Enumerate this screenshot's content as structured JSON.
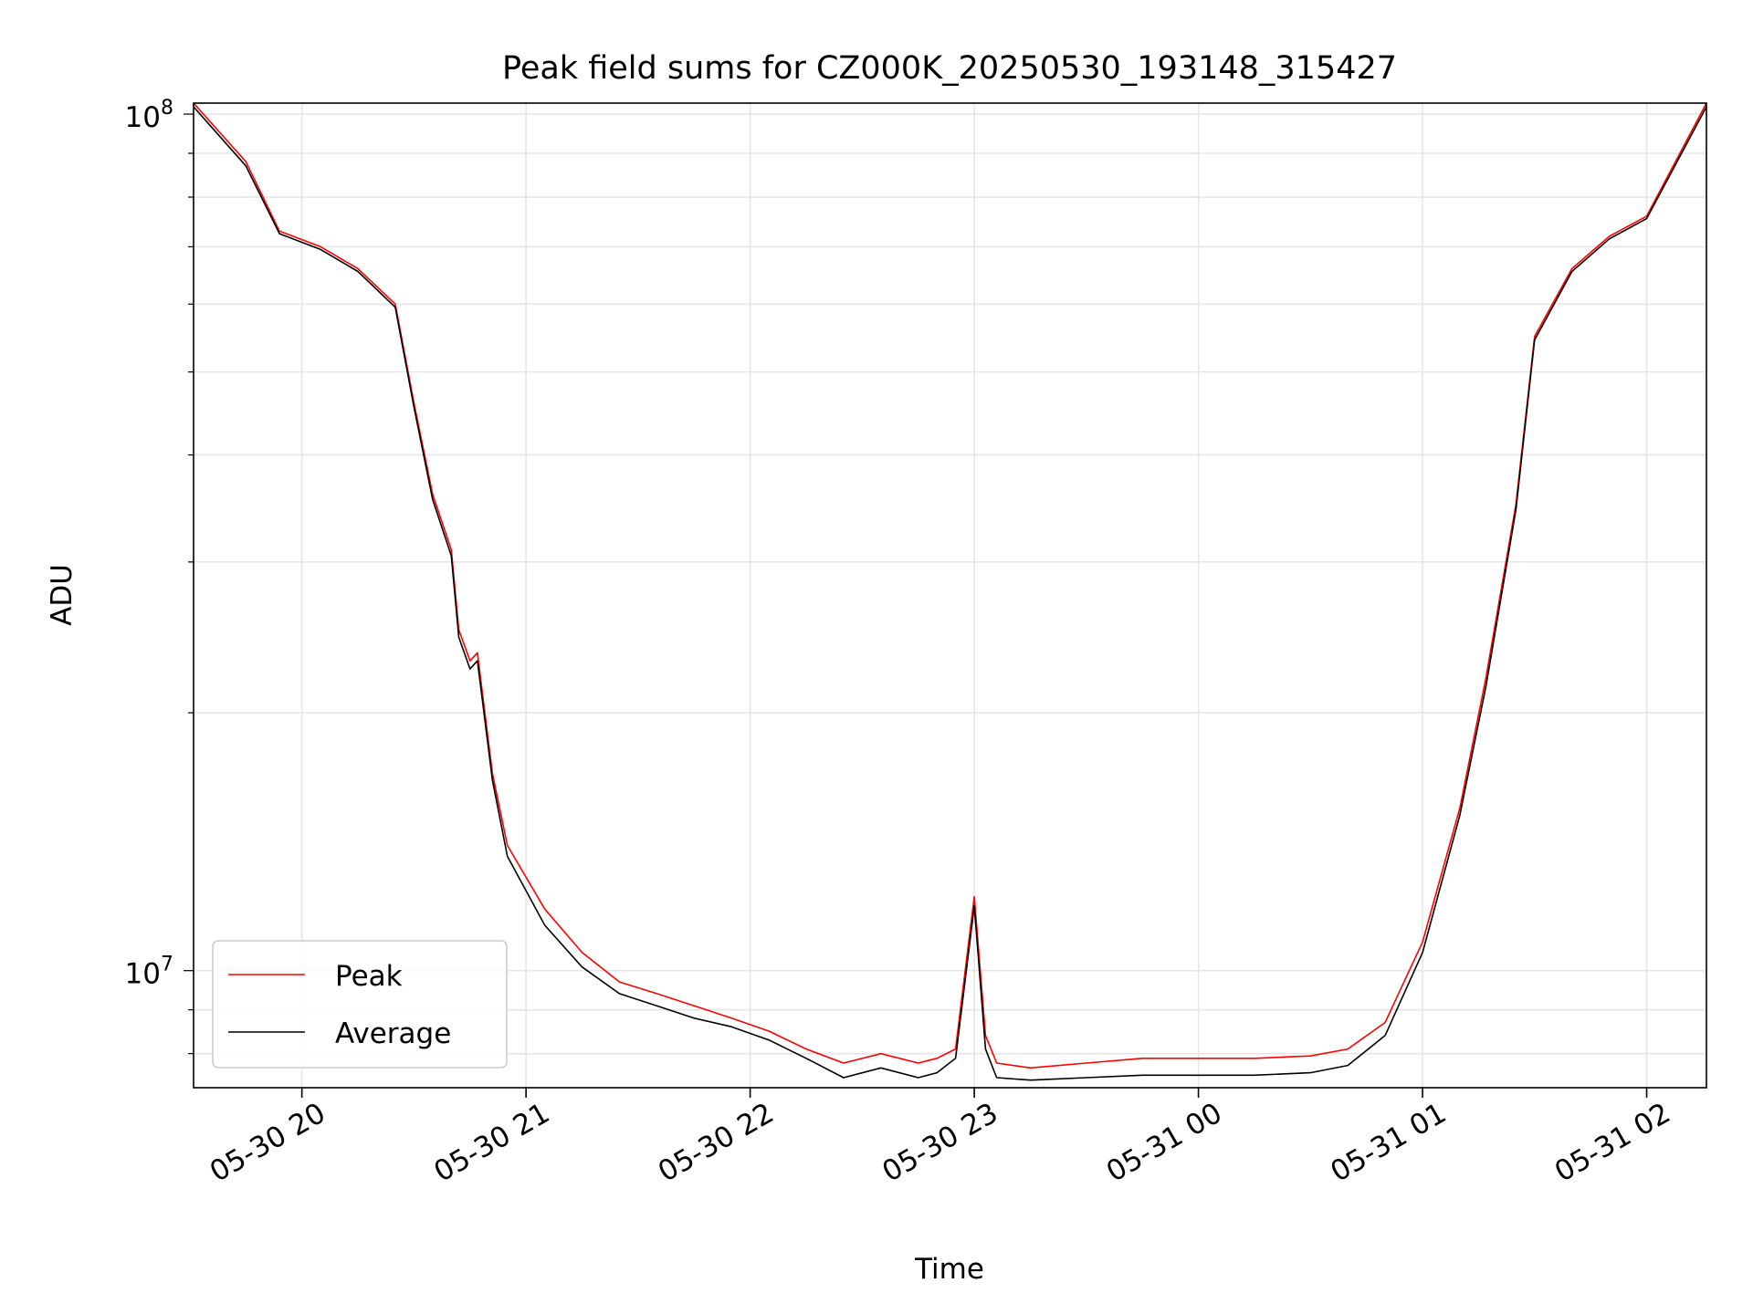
{
  "chart_data": {
    "type": "line",
    "title": "Peak field sums for CZ000K_20250530_193148_315427",
    "xlabel": "Time",
    "ylabel": "ADU",
    "x_axis": {
      "type": "time",
      "range": [
        "2025-05-30 19:31",
        "2025-05-31 02:16"
      ],
      "ticks": [
        {
          "value": "2025-05-30 20:00",
          "label": "05-30 20"
        },
        {
          "value": "2025-05-30 21:00",
          "label": "05-30 21"
        },
        {
          "value": "2025-05-30 22:00",
          "label": "05-30 22"
        },
        {
          "value": "2025-05-30 23:00",
          "label": "05-30 23"
        },
        {
          "value": "2025-05-31 00:00",
          "label": "05-31 00"
        },
        {
          "value": "2025-05-31 01:00",
          "label": "05-31 01"
        },
        {
          "value": "2025-05-31 02:00",
          "label": "05-31 02"
        }
      ]
    },
    "y_axis": {
      "scale": "log",
      "range": [
        7300000,
        103000000
      ],
      "ticks": [
        {
          "value": 10000000,
          "base": "10",
          "exp": "7"
        },
        {
          "value": 100000000,
          "base": "10",
          "exp": "8"
        }
      ]
    },
    "grid": true,
    "legend": "lower-left",
    "series": [
      {
        "name": "Peak",
        "color": "#ff0000",
        "x": [
          "2025-05-30 19:31",
          "2025-05-30 19:45",
          "2025-05-30 19:54",
          "2025-05-30 20:05",
          "2025-05-30 20:15",
          "2025-05-30 20:25",
          "2025-05-30 20:30",
          "2025-05-30 20:35",
          "2025-05-30 20:40",
          "2025-05-30 20:42",
          "2025-05-30 20:45",
          "2025-05-30 20:47",
          "2025-05-30 20:51",
          "2025-05-30 20:55",
          "2025-05-30 21:05",
          "2025-05-30 21:15",
          "2025-05-30 21:25",
          "2025-05-30 21:35",
          "2025-05-30 21:45",
          "2025-05-30 21:55",
          "2025-05-30 22:05",
          "2025-05-30 22:15",
          "2025-05-30 22:25",
          "2025-05-30 22:35",
          "2025-05-30 22:45",
          "2025-05-30 22:50",
          "2025-05-30 22:55",
          "2025-05-30 23:00",
          "2025-05-30 23:03",
          "2025-05-30 23:06",
          "2025-05-30 23:15",
          "2025-05-30 23:30",
          "2025-05-30 23:45",
          "2025-05-31 00:00",
          "2025-05-31 00:15",
          "2025-05-31 00:30",
          "2025-05-31 00:40",
          "2025-05-31 00:50",
          "2025-05-31 01:00",
          "2025-05-31 01:10",
          "2025-05-31 01:17",
          "2025-05-31 01:25",
          "2025-05-31 01:30",
          "2025-05-31 01:40",
          "2025-05-31 01:50",
          "2025-05-31 02:00",
          "2025-05-31 02:16"
        ],
        "y": [
          103000000,
          88000000,
          73000000,
          70000000,
          66000000,
          60000000,
          46000000,
          36000000,
          31000000,
          25000000,
          23000000,
          23500000,
          17000000,
          14000000,
          11800000,
          10500000,
          9700000,
          9400000,
          9100000,
          8800000,
          8500000,
          8100000,
          7800000,
          8000000,
          7800000,
          7900000,
          8100000,
          12200000,
          8400000,
          7800000,
          7700000,
          7800000,
          7900000,
          7900000,
          7900000,
          7950000,
          8100000,
          8700000,
          10800000,
          15500000,
          22000000,
          35000000,
          55000000,
          66000000,
          72000000,
          76000000,
          103000000
        ]
      },
      {
        "name": "Average",
        "color": "#000000",
        "x": [
          "2025-05-30 19:31",
          "2025-05-30 19:45",
          "2025-05-30 19:54",
          "2025-05-30 20:05",
          "2025-05-30 20:15",
          "2025-05-30 20:25",
          "2025-05-30 20:30",
          "2025-05-30 20:35",
          "2025-05-30 20:40",
          "2025-05-30 20:42",
          "2025-05-30 20:45",
          "2025-05-30 20:47",
          "2025-05-30 20:51",
          "2025-05-30 20:55",
          "2025-05-30 21:05",
          "2025-05-30 21:15",
          "2025-05-30 21:25",
          "2025-05-30 21:35",
          "2025-05-30 21:45",
          "2025-05-30 21:55",
          "2025-05-30 22:05",
          "2025-05-30 22:15",
          "2025-05-30 22:25",
          "2025-05-30 22:35",
          "2025-05-30 22:45",
          "2025-05-30 22:50",
          "2025-05-30 22:55",
          "2025-05-30 23:00",
          "2025-05-30 23:03",
          "2025-05-30 23:06",
          "2025-05-30 23:15",
          "2025-05-30 23:30",
          "2025-05-30 23:45",
          "2025-05-31 00:00",
          "2025-05-31 00:15",
          "2025-05-31 00:30",
          "2025-05-31 00:40",
          "2025-05-31 00:50",
          "2025-05-31 01:00",
          "2025-05-31 01:10",
          "2025-05-31 01:17",
          "2025-05-31 01:25",
          "2025-05-31 01:30",
          "2025-05-31 01:40",
          "2025-05-31 01:50",
          "2025-05-31 02:00",
          "2025-05-31 02:16"
        ],
        "y": [
          102000000,
          87000000,
          72500000,
          69500000,
          65500000,
          59500000,
          45500000,
          35500000,
          30500000,
          24500000,
          22500000,
          23000000,
          16700000,
          13600000,
          11300000,
          10100000,
          9400000,
          9100000,
          8800000,
          8600000,
          8300000,
          7900000,
          7500000,
          7700000,
          7500000,
          7600000,
          7900000,
          11900000,
          8100000,
          7500000,
          7450000,
          7500000,
          7550000,
          7550000,
          7550000,
          7600000,
          7750000,
          8400000,
          10500000,
          15200000,
          21500000,
          34500000,
          54500000,
          65500000,
          71500000,
          75500000,
          102000000
        ]
      }
    ]
  }
}
